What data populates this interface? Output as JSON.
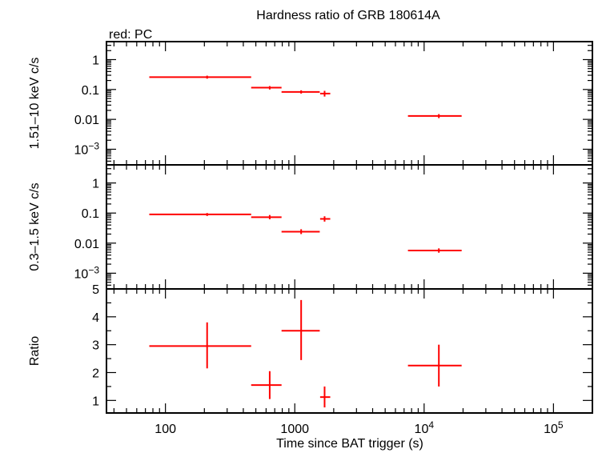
{
  "chart_data": {
    "type": "scatter",
    "title": "Hardness ratio of GRB 180614A",
    "subtitle": "red: PC",
    "xlabel": "Time since BAT trigger (s)",
    "xscale": "log",
    "xlim": [
      35,
      200000
    ],
    "x_ticks": [
      {
        "value": 100,
        "label": "100"
      },
      {
        "value": 1000,
        "label": "1000"
      },
      {
        "value": 10000,
        "base": "10",
        "exp": "4"
      },
      {
        "value": 100000,
        "base": "10",
        "exp": "5"
      }
    ],
    "color": "#ff0000",
    "panels": [
      {
        "ylabel": "1.51–10 keV c/s",
        "yscale": "log",
        "ylim": [
          0.0003,
          4
        ],
        "y_ticks": [
          {
            "value": 1,
            "label": "1"
          },
          {
            "value": 0.1,
            "label": "0.1"
          },
          {
            "value": 0.01,
            "label": "0.01"
          },
          {
            "value": 0.001,
            "base": "10",
            "exp": "−3"
          }
        ],
        "points": [
          {
            "x": 210,
            "xlo": 75,
            "xhi": 460,
            "y": 0.26,
            "ylo": 0.23,
            "yhi": 0.29
          },
          {
            "x": 640,
            "xlo": 460,
            "xhi": 790,
            "y": 0.115,
            "ylo": 0.1,
            "yhi": 0.13
          },
          {
            "x": 1120,
            "xlo": 790,
            "xhi": 1560,
            "y": 0.083,
            "ylo": 0.073,
            "yhi": 0.094
          },
          {
            "x": 1700,
            "xlo": 1570,
            "xhi": 1880,
            "y": 0.073,
            "ylo": 0.058,
            "yhi": 0.09
          },
          {
            "x": 13000,
            "xlo": 7500,
            "xhi": 19500,
            "y": 0.013,
            "ylo": 0.011,
            "yhi": 0.015
          }
        ]
      },
      {
        "ylabel": "0.3–1.5 keV c/s",
        "yscale": "log",
        "ylim": [
          0.0003,
          4
        ],
        "y_ticks": [
          {
            "value": 1,
            "label": "1"
          },
          {
            "value": 0.1,
            "label": "0.1"
          },
          {
            "value": 0.01,
            "label": "0.01"
          },
          {
            "value": 0.001,
            "base": "10",
            "exp": "−3"
          }
        ],
        "points": [
          {
            "x": 210,
            "xlo": 75,
            "xhi": 460,
            "y": 0.09,
            "ylo": 0.08,
            "yhi": 0.1
          },
          {
            "x": 640,
            "xlo": 460,
            "xhi": 790,
            "y": 0.073,
            "ylo": 0.062,
            "yhi": 0.086
          },
          {
            "x": 1120,
            "xlo": 790,
            "xhi": 1560,
            "y": 0.024,
            "ylo": 0.02,
            "yhi": 0.029
          },
          {
            "x": 1700,
            "xlo": 1570,
            "xhi": 1880,
            "y": 0.064,
            "ylo": 0.052,
            "yhi": 0.078
          },
          {
            "x": 13000,
            "xlo": 7500,
            "xhi": 19500,
            "y": 0.0057,
            "ylo": 0.0048,
            "yhi": 0.0067
          }
        ]
      },
      {
        "ylabel": "Ratio",
        "yscale": "linear",
        "ylim": [
          0.55,
          5
        ],
        "y_ticks": [
          {
            "value": 1,
            "label": "1"
          },
          {
            "value": 2,
            "label": "2"
          },
          {
            "value": 3,
            "label": "3"
          },
          {
            "value": 4,
            "label": "4"
          },
          {
            "value": 5,
            "label": "5"
          }
        ],
        "points": [
          {
            "x": 210,
            "xlo": 75,
            "xhi": 460,
            "y": 2.95,
            "ylo": 2.15,
            "yhi": 3.8
          },
          {
            "x": 640,
            "xlo": 460,
            "xhi": 790,
            "y": 1.55,
            "ylo": 1.05,
            "yhi": 2.05
          },
          {
            "x": 1120,
            "xlo": 790,
            "xhi": 1560,
            "y": 3.5,
            "ylo": 2.45,
            "yhi": 4.6
          },
          {
            "x": 1700,
            "xlo": 1570,
            "xhi": 1880,
            "y": 1.12,
            "ylo": 0.75,
            "yhi": 1.5
          },
          {
            "x": 13000,
            "xlo": 7500,
            "xhi": 19500,
            "y": 2.25,
            "ylo": 1.5,
            "yhi": 3.0
          }
        ]
      }
    ]
  }
}
